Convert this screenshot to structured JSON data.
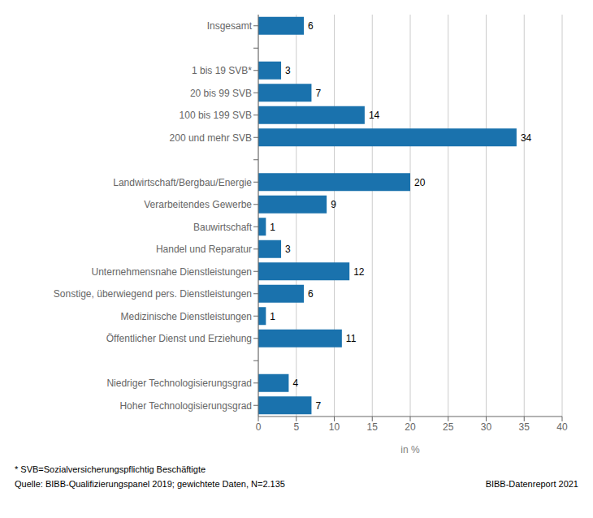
{
  "chart_data": {
    "type": "bar",
    "orientation": "horizontal",
    "categories": [
      "Insgesamt",
      null,
      "1 bis 19 SVB*",
      "20 bis 99 SVB",
      "100 bis 199 SVB",
      "200 und mehr SVB",
      null,
      "Landwirtschaft/Bergbau/Energie",
      "Verarbeitendes Gewerbe",
      "Bauwirtschaft",
      "Handel und Reparatur",
      "Unternehmensnahe Dienstleistungen",
      "Sonstige, überwiegend pers. Dienstleistungen",
      "Medizinische Dienstleistungen",
      "Öffentlicher Dienst und Erziehung",
      null,
      "Niedriger Technologisierungsgrad",
      "Hoher Technologisierungsgrad"
    ],
    "values": [
      6,
      null,
      3,
      7,
      14,
      34,
      null,
      20,
      9,
      1,
      3,
      12,
      6,
      1,
      11,
      null,
      4,
      7
    ],
    "color": "#1a72ad",
    "xlim": [
      0,
      40
    ],
    "xticks": [
      0,
      5,
      10,
      15,
      20,
      25,
      30,
      35,
      40
    ],
    "xlabel": "in %",
    "grid": true,
    "data_labels": true,
    "annotations": [
      "* SVB=Sozialversicherungspflichtig Beschäftigte",
      "Quelle: BIBB-Qualifizierungspanel 2019;  gewichtete Daten, N=2.135",
      "BIBB-Datenreport 2021"
    ]
  }
}
